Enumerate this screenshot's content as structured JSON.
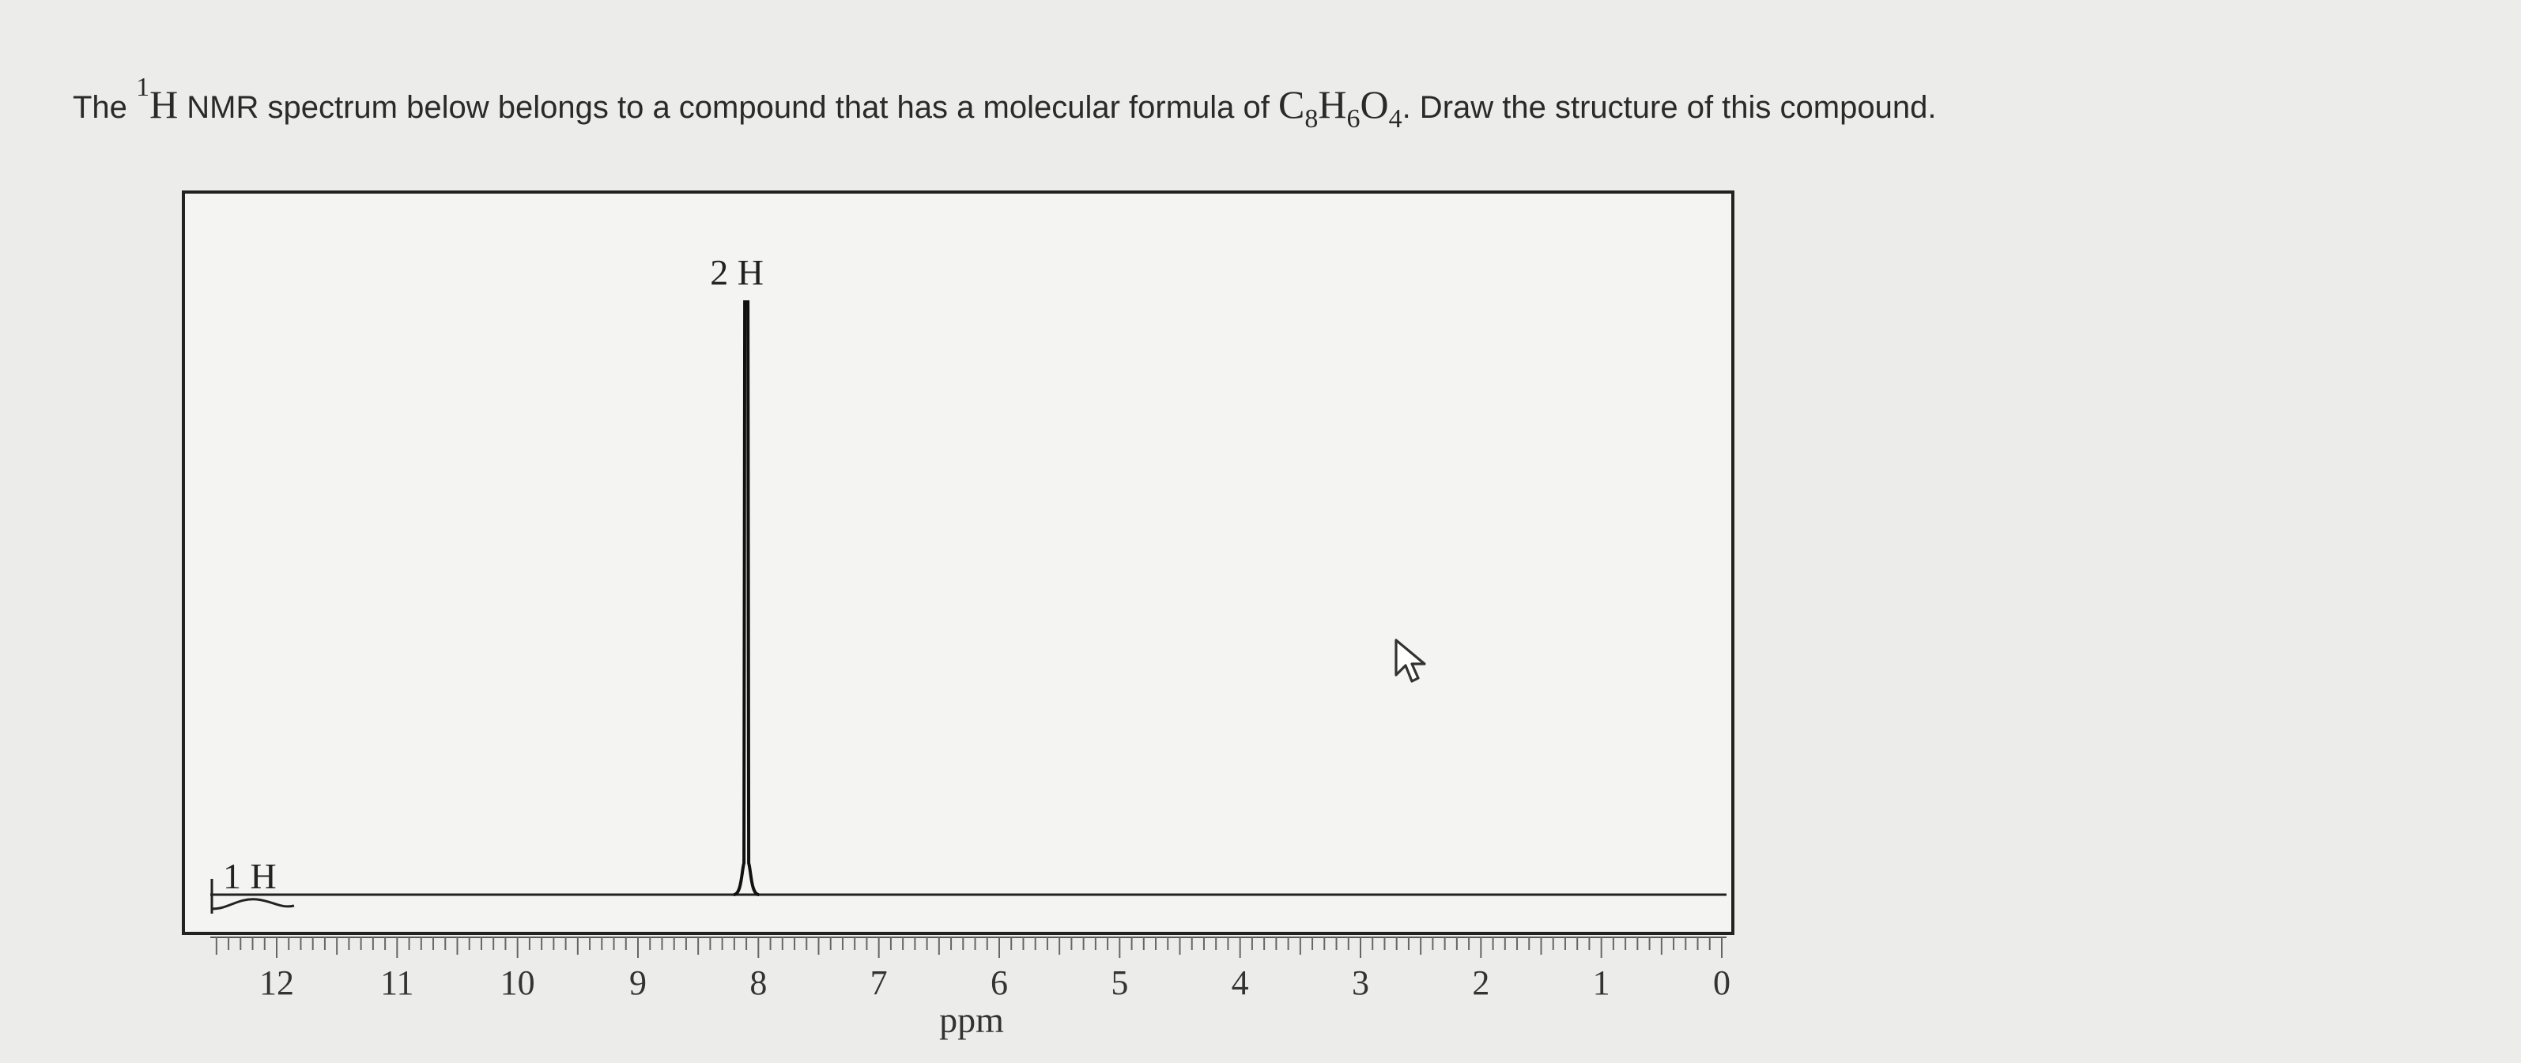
{
  "question": {
    "lead": "The",
    "nucleus_mass": "1",
    "nucleus_symbol": "H",
    "text_mid": "NMR spectrum below belongs to a compound that has a molecular formula of",
    "formula": [
      {
        "el": "C",
        "n": "8"
      },
      {
        "el": "H",
        "n": "6"
      },
      {
        "el": "O",
        "n": "4"
      }
    ],
    "text_end": ". Draw the structure of this compound."
  },
  "chart_data": {
    "type": "line",
    "xlabel": "ppm",
    "xlim": [
      12.5,
      0
    ],
    "ticks": [
      "12",
      "11",
      "10",
      "9",
      "8",
      "7",
      "6",
      "5",
      "4",
      "3",
      "2",
      "1",
      "0"
    ],
    "peaks": [
      {
        "ppm": 8.1,
        "height": 1.0,
        "label": "2 H"
      },
      {
        "ppm": 12.4,
        "height": 0.03,
        "label": "1 H"
      }
    ],
    "integration_labels": [
      "2 H",
      "1 H"
    ]
  },
  "cursor_icon": "arrow-pointer-icon"
}
